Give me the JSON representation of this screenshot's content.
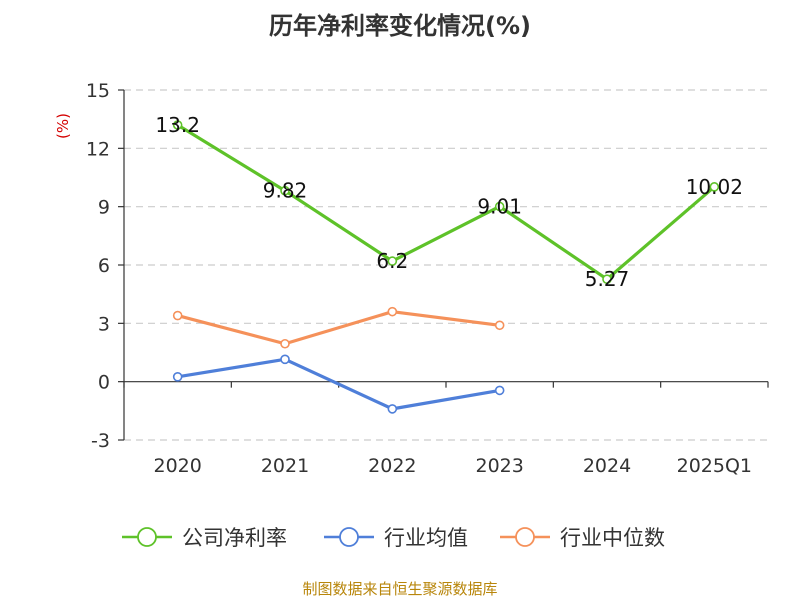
{
  "chart_data": {
    "type": "line",
    "title": "历年净利率变化情况(%)",
    "unit_label": "(%)",
    "categories": [
      "2020",
      "2021",
      "2022",
      "2023",
      "2024",
      "2025Q1"
    ],
    "ylim": [
      -3,
      15
    ],
    "yticks": [
      -3,
      0,
      3,
      6,
      9,
      12,
      15
    ],
    "grid": true,
    "legend_position": "bottom",
    "series": [
      {
        "name": "公司净利率",
        "color": "#5ec229",
        "values": [
          13.2,
          9.82,
          6.2,
          9.01,
          5.27,
          10.02
        ],
        "labels": [
          "13.2",
          "9.82",
          "6.2",
          "9.01",
          "5.27",
          "10.02"
        ]
      },
      {
        "name": "行业均值",
        "color": "#4f7fd9",
        "values": [
          0.25,
          1.15,
          -1.4,
          -0.45,
          null,
          null
        ]
      },
      {
        "name": "行业中位数",
        "color": "#f5915a",
        "values": [
          3.4,
          1.95,
          3.6,
          2.9,
          null,
          null
        ]
      }
    ]
  },
  "source_text": "制图数据来自恒生聚源数据库"
}
